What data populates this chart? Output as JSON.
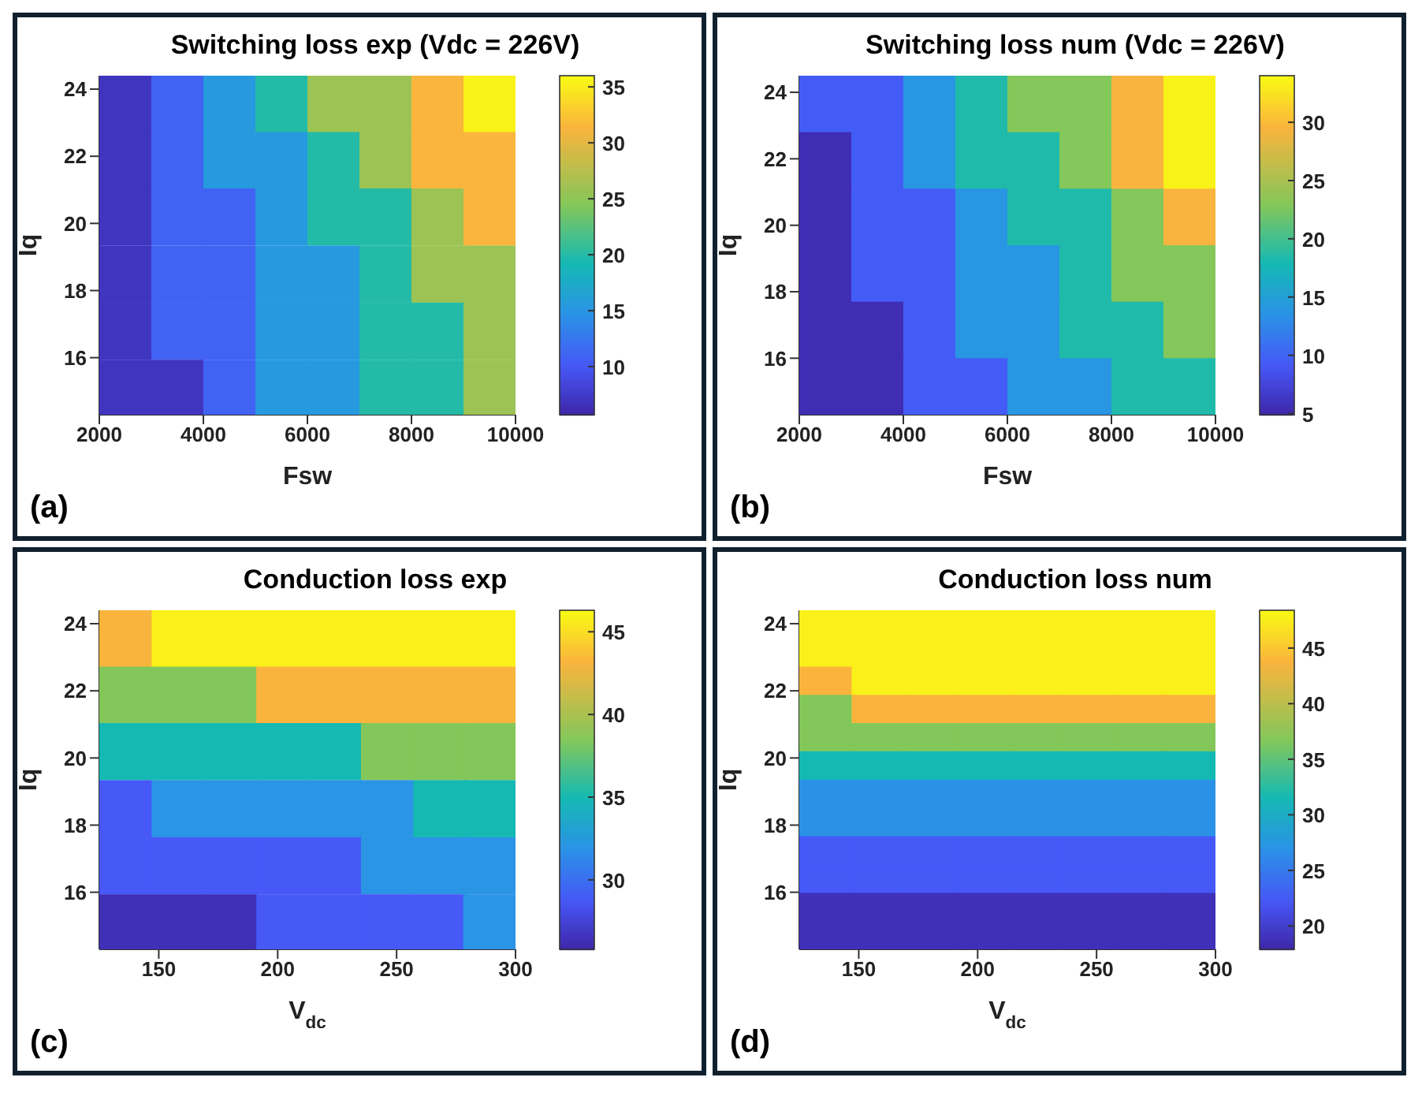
{
  "chart_data": [
    {
      "type": "heatmap",
      "title": "Switching loss exp (Vdc = 226V)",
      "xlabel": "Fsw",
      "ylabel": "Iq",
      "annotations": [
        "(a)"
      ],
      "xlim": [
        2000,
        10000
      ],
      "xticks": [
        2000,
        4000,
        6000,
        8000,
        10000
      ],
      "ylim": [
        14.3,
        24.4
      ],
      "yticks": [
        16,
        18,
        20,
        22,
        24
      ],
      "clim": [
        5.7,
        36
      ],
      "cticks": [
        10,
        15,
        20,
        25,
        30,
        35
      ],
      "x": [
        2500,
        3500,
        4500,
        5500,
        6500,
        7500,
        8500,
        9500
      ],
      "y": [
        23.56,
        21.88,
        20.2,
        18.5,
        16.8,
        15.1
      ],
      "cells": [
        [
          7,
          11,
          15.5,
          20,
          26,
          26,
          31.5,
          35.5
        ],
        [
          7,
          11,
          15.5,
          15.5,
          20,
          26,
          31.5,
          31.5
        ],
        [
          7,
          11,
          11,
          15.5,
          20,
          20,
          26,
          31.5
        ],
        [
          7,
          11,
          11,
          15.5,
          15.5,
          20,
          26,
          26
        ],
        [
          7,
          11,
          11,
          15.5,
          15.5,
          20,
          20,
          26
        ],
        [
          7,
          7,
          11,
          15.5,
          15.5,
          20,
          20,
          26
        ]
      ]
    },
    {
      "type": "heatmap",
      "title": "Switching loss num (Vdc = 226V)",
      "xlabel": "Fsw",
      "ylabel": "Iq",
      "annotations": [
        "(b)"
      ],
      "xlim": [
        2000,
        10000
      ],
      "xticks": [
        2000,
        4000,
        6000,
        8000,
        10000
      ],
      "ylim": [
        14.3,
        24.5
      ],
      "yticks": [
        16,
        18,
        20,
        22,
        24
      ],
      "clim": [
        4.9,
        34
      ],
      "cticks": [
        5,
        10,
        15,
        20,
        25,
        30
      ],
      "x": [
        2500,
        3500,
        4500,
        5500,
        6500,
        7500,
        8500,
        9500
      ],
      "y": [
        23.65,
        21.95,
        20.25,
        18.55,
        16.85,
        15.15
      ],
      "cells": [
        [
          9.5,
          9.5,
          14,
          18.5,
          23,
          23,
          29.5,
          33.5
        ],
        [
          5.5,
          9.5,
          14,
          18.5,
          18.5,
          23,
          29.5,
          33.5
        ],
        [
          5.5,
          9.5,
          9.5,
          14,
          18.5,
          18.5,
          23,
          29.5
        ],
        [
          5.5,
          9.5,
          9.5,
          14,
          14,
          18.5,
          23,
          23
        ],
        [
          5.5,
          5.5,
          9.5,
          14,
          14,
          18.5,
          18.5,
          23
        ],
        [
          5.5,
          5.5,
          9.5,
          9.5,
          14,
          14,
          18.5,
          18.5
        ]
      ]
    },
    {
      "type": "heatmap",
      "title": "Conduction loss exp",
      "xlabel": "V$_{dc}$",
      "ylabel": "Iq",
      "annotations": [
        "(c)"
      ],
      "xlim": [
        125,
        300
      ],
      "xticks": [
        150,
        200,
        250,
        300
      ],
      "ylim": [
        14.3,
        24.4
      ],
      "yticks": [
        16,
        18,
        20,
        22,
        24
      ],
      "clim": [
        25.8,
        46.3
      ],
      "cticks": [
        30,
        35,
        40,
        45
      ],
      "x": [
        136,
        158,
        180,
        202,
        224,
        246,
        268,
        289
      ],
      "y": [
        23.56,
        21.88,
        20.2,
        18.5,
        16.8,
        15.1
      ],
      "cells": [
        [
          43.2,
          45.9,
          45.9,
          45.9,
          45.9,
          45.9,
          45.9,
          45.9
        ],
        [
          38.5,
          38.5,
          38.5,
          43.2,
          43.2,
          43.2,
          43.2,
          43.2
        ],
        [
          35,
          35,
          35,
          35,
          35,
          38.5,
          38.5,
          38.5
        ],
        [
          28.9,
          32,
          32,
          32,
          32,
          32,
          35,
          35
        ],
        [
          28.9,
          28.9,
          28.9,
          28.9,
          28.9,
          32,
          32,
          32
        ],
        [
          26.4,
          26.4,
          26.4,
          28.9,
          28.9,
          28.9,
          28.9,
          32
        ]
      ]
    },
    {
      "type": "heatmap",
      "title": "Conduction loss num",
      "xlabel": "V$_{dc}$",
      "ylabel": "Iq",
      "annotations": [
        "(d)"
      ],
      "xlim": [
        125,
        300
      ],
      "xticks": [
        150,
        200,
        250,
        300
      ],
      "ylim": [
        14.3,
        24.4
      ],
      "yticks": [
        16,
        18,
        20,
        22,
        24
      ],
      "clim": [
        17.9,
        48.4
      ],
      "cticks": [
        20,
        25,
        30,
        35,
        40,
        45
      ],
      "x": [
        136,
        158,
        180,
        202,
        224,
        246,
        268,
        289
      ],
      "y": [
        23.98,
        23.14,
        22.3,
        21.46,
        20.62,
        19.78,
        18.93,
        18.09,
        17.25,
        16.41,
        15.56,
        14.72
      ],
      "cells": [
        [
          47.8,
          47.8,
          47.8,
          47.8,
          47.8,
          47.8,
          47.8,
          47.8
        ],
        [
          47.8,
          47.8,
          47.8,
          47.8,
          47.8,
          47.8,
          47.8,
          47.8
        ],
        [
          43.8,
          47.8,
          47.8,
          47.8,
          47.8,
          47.8,
          47.8,
          47.8
        ],
        [
          36.8,
          43.8,
          43.8,
          43.8,
          43.8,
          43.8,
          43.8,
          43.8
        ],
        [
          36.8,
          36.8,
          36.8,
          36.8,
          36.8,
          36.8,
          36.8,
          36.8
        ],
        [
          31.6,
          31.6,
          31.6,
          31.6,
          31.6,
          31.6,
          31.6,
          31.6
        ],
        [
          27,
          27,
          27,
          27,
          27,
          27,
          27,
          27
        ],
        [
          27,
          27,
          27,
          27,
          27,
          27,
          27,
          27
        ],
        [
          22.5,
          22.5,
          22.5,
          22.5,
          22.5,
          22.5,
          22.5,
          22.5
        ],
        [
          22.5,
          22.5,
          22.5,
          22.5,
          22.5,
          22.5,
          22.5,
          22.5
        ],
        [
          18.8,
          18.8,
          18.8,
          18.8,
          18.8,
          18.8,
          18.8,
          18.8
        ],
        [
          18.8,
          18.8,
          18.8,
          18.8,
          18.8,
          18.8,
          18.8,
          18.8
        ]
      ]
    }
  ]
}
